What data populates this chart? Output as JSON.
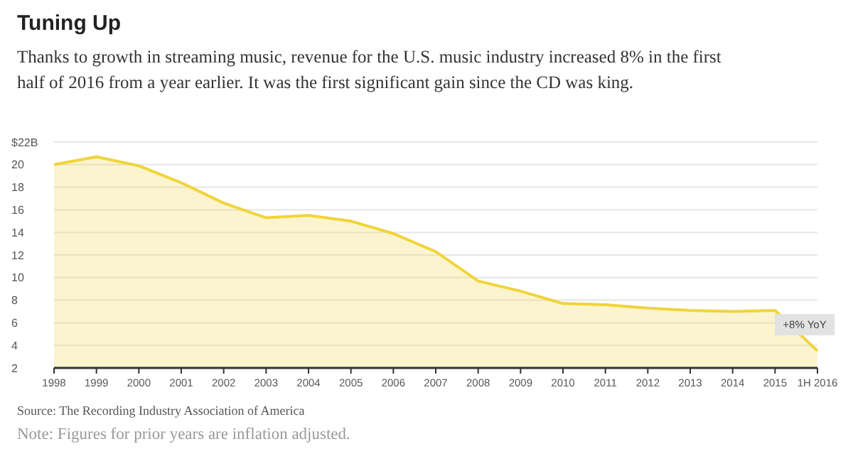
{
  "chart_data": {
    "type": "area",
    "title": "Tuning Up",
    "subtitle": "Thanks to growth in streaming music, revenue for the U.S. music industry increased 8% in the first half of 2016 from a year earlier. It was the first significant gain since the CD was king.",
    "categories": [
      "1998",
      "1999",
      "2000",
      "2001",
      "2002",
      "2003",
      "2004",
      "2005",
      "2006",
      "2007",
      "2008",
      "2009",
      "2010",
      "2011",
      "2012",
      "2013",
      "2014",
      "2015",
      "1H 2016"
    ],
    "series": [
      {
        "color": "#f0d43a",
        "values": [
          20.0,
          20.7,
          19.9,
          18.4,
          16.6,
          15.3,
          15.5,
          15.0,
          13.9,
          12.3,
          9.7,
          8.8,
          7.7,
          7.6,
          7.3,
          7.1,
          7.0,
          7.1,
          3.5
        ]
      }
    ],
    "ylim": [
      2,
      22
    ],
    "yticks": [
      2,
      4,
      6,
      8,
      10,
      12,
      14,
      16,
      18,
      20,
      {
        "value": 22,
        "label": "$22B"
      }
    ],
    "grid": "y",
    "annotations": [
      {
        "text": "+8% YoY",
        "x": "1H 2016",
        "y": 3.5
      },
      "Source: The Recording Industry Association of America",
      "Note: Figures for prior years are inflation adjusted."
    ]
  }
}
